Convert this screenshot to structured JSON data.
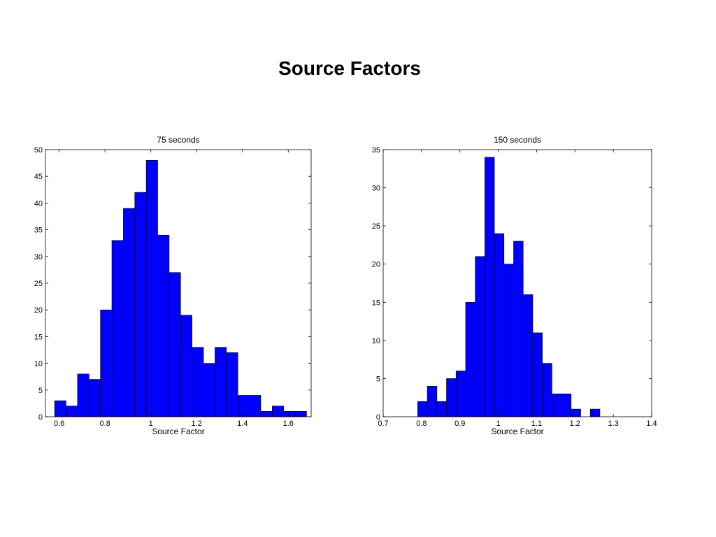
{
  "page": {
    "title": "Source Factors"
  },
  "chart_data": [
    {
      "type": "bar",
      "title": "75 seconds",
      "xlabel": "Source Factor",
      "ylabel": "",
      "xlim": [
        0.54,
        1.7
      ],
      "ylim": [
        0,
        50
      ],
      "xticks": [
        0.6,
        0.8,
        1,
        1.2,
        1.4,
        1.6
      ],
      "xtick_labels": [
        "0.6",
        "0.8",
        "1",
        "1.2",
        "1.4",
        "1.6"
      ],
      "yticks": [
        0,
        5,
        10,
        15,
        20,
        25,
        30,
        35,
        40,
        45,
        50
      ],
      "ytick_labels": [
        "0",
        "5",
        "10",
        "15",
        "20",
        "25",
        "30",
        "35",
        "40",
        "45",
        "50"
      ],
      "bin_start": 0.58,
      "bin_width": 0.05,
      "values": [
        3,
        2,
        8,
        7,
        20,
        33,
        39,
        42,
        48,
        34,
        27,
        19,
        13,
        10,
        13,
        12,
        4,
        4,
        1,
        2,
        1,
        1
      ],
      "bar_color": "#0000ff",
      "grid": false,
      "legend": "none"
    },
    {
      "type": "bar",
      "title": "150 seconds",
      "xlabel": "Source Factor",
      "ylabel": "",
      "xlim": [
        0.7,
        1.4
      ],
      "ylim": [
        0,
        35
      ],
      "xticks": [
        0.7,
        0.8,
        0.9,
        1,
        1.1,
        1.2,
        1.3,
        1.4
      ],
      "xtick_labels": [
        "0.7",
        "0.8",
        "0.9",
        "1",
        "1.1",
        "1.2",
        "1.3",
        "1.4"
      ],
      "yticks": [
        0,
        5,
        10,
        15,
        20,
        25,
        30,
        35
      ],
      "ytick_labels": [
        "0",
        "5",
        "10",
        "15",
        "20",
        "25",
        "30",
        "35"
      ],
      "bin_start": 0.79,
      "bin_width": 0.025,
      "values": [
        2,
        4,
        2,
        5,
        6,
        15,
        21,
        34,
        24,
        20,
        23,
        16,
        11,
        7,
        3,
        3,
        1,
        0,
        1
      ],
      "bar_color": "#0000ff",
      "grid": false,
      "legend": "none"
    }
  ]
}
